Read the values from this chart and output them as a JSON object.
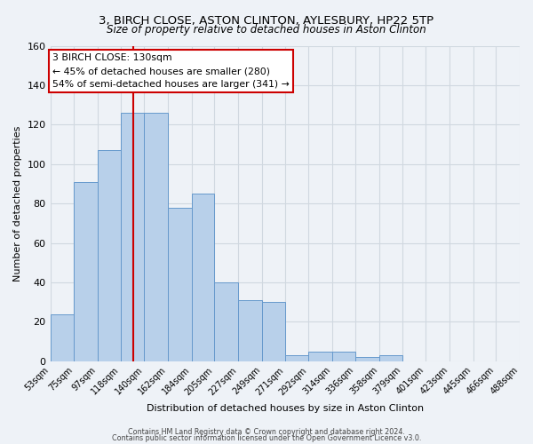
{
  "title": "3, BIRCH CLOSE, ASTON CLINTON, AYLESBURY, HP22 5TP",
  "subtitle": "Size of property relative to detached houses in Aston Clinton",
  "xlabel": "Distribution of detached houses by size in Aston Clinton",
  "ylabel": "Number of detached properties",
  "bin_labels": [
    "53sqm",
    "75sqm",
    "97sqm",
    "118sqm",
    "140sqm",
    "162sqm",
    "184sqm",
    "205sqm",
    "227sqm",
    "249sqm",
    "271sqm",
    "292sqm",
    "314sqm",
    "336sqm",
    "358sqm",
    "379sqm",
    "401sqm",
    "423sqm",
    "445sqm",
    "466sqm",
    "488sqm"
  ],
  "bin_edges": [
    53,
    75,
    97,
    118,
    140,
    162,
    184,
    205,
    227,
    249,
    271,
    292,
    314,
    336,
    358,
    379,
    401,
    423,
    445,
    466,
    488
  ],
  "bar_heights": [
    24,
    91,
    107,
    126,
    126,
    78,
    85,
    40,
    31,
    30,
    3,
    5,
    5,
    2,
    3,
    0,
    0,
    0,
    0,
    0
  ],
  "bar_color": "#b8d0ea",
  "bar_edge_color": "#6699cc",
  "vline_x": 130,
  "vline_color": "#cc0000",
  "annotation_text": "3 BIRCH CLOSE: 130sqm\n← 45% of detached houses are smaller (280)\n54% of semi-detached houses are larger (341) →",
  "annotation_box_color": "#ffffff",
  "annotation_box_edge": "#cc0000",
  "ylim": [
    0,
    160
  ],
  "yticks": [
    0,
    20,
    40,
    60,
    80,
    100,
    120,
    140,
    160
  ],
  "grid_color": "#d0d8e0",
  "bg_color": "#eef2f7",
  "footer1": "Contains HM Land Registry data © Crown copyright and database right 2024.",
  "footer2": "Contains public sector information licensed under the Open Government Licence v3.0."
}
